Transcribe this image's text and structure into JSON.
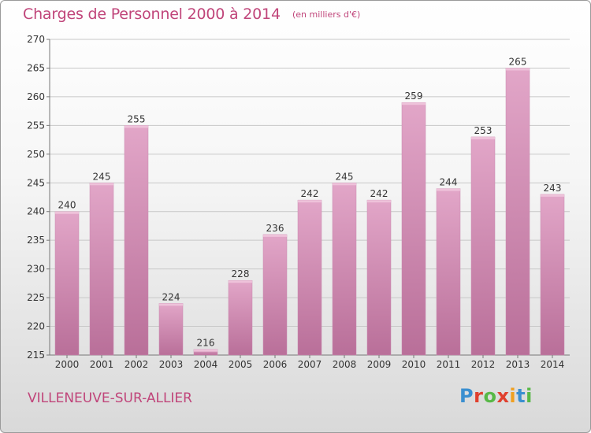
{
  "header": {
    "title": "Charges de Personnel 2000 à 2014",
    "subtitle": "(en milliers d'€)"
  },
  "footer": {
    "place": "VILLENEUVE-SUR-ALLIER",
    "logo": [
      "P",
      "r",
      "o",
      "x",
      "i",
      "t",
      "i"
    ],
    "logo_colors": [
      "#3a8fd0",
      "#e0402e",
      "#58b847",
      "#e0402e",
      "#f0a020",
      "#3a8fd0",
      "#58b847"
    ]
  },
  "colors": {
    "bar_light": "#e2a6c8",
    "bar_dark": "#b96f99",
    "text": "#c0457a",
    "grid": "#c8c8c8"
  },
  "chart_data": {
    "type": "bar",
    "title": "Charges de Personnel 2000 à 2014",
    "subtitle": "(en milliers d'€)",
    "categories": [
      "2000",
      "2001",
      "2002",
      "2003",
      "2004",
      "2005",
      "2006",
      "2007",
      "2008",
      "2009",
      "2010",
      "2011",
      "2012",
      "2013",
      "2014"
    ],
    "values": [
      240,
      245,
      255,
      224,
      216,
      228,
      236,
      242,
      245,
      242,
      259,
      244,
      253,
      265,
      243
    ],
    "ylim": [
      215,
      270
    ],
    "yticks": [
      215,
      220,
      225,
      230,
      235,
      240,
      245,
      250,
      255,
      260,
      265,
      270
    ],
    "grid": true,
    "data_labels": true
  }
}
